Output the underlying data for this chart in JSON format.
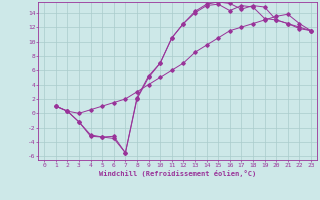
{
  "xlabel": "Windchill (Refroidissement éolien,°C)",
  "bg_color": "#cde8e8",
  "grid_color": "#aacccc",
  "line_color": "#993399",
  "xlim": [
    -0.5,
    23.5
  ],
  "ylim": [
    -6.5,
    15.5
  ],
  "xticks": [
    0,
    1,
    2,
    3,
    4,
    5,
    6,
    7,
    8,
    9,
    10,
    11,
    12,
    13,
    14,
    15,
    16,
    17,
    18,
    19,
    20,
    21,
    22,
    23
  ],
  "yticks": [
    -6,
    -4,
    -2,
    0,
    2,
    4,
    6,
    8,
    10,
    12,
    14
  ],
  "curve1_x": [
    1,
    2,
    3,
    4,
    5,
    6,
    7,
    8,
    9,
    10,
    11,
    12,
    13,
    14,
    15,
    16,
    17,
    18,
    19,
    20,
    21,
    22,
    23
  ],
  "curve1_y": [
    1,
    0.3,
    -1.2,
    -3.2,
    -3.3,
    -3.5,
    -5.5,
    2.0,
    5.0,
    7.0,
    10.5,
    12.5,
    14.2,
    15.2,
    15.5,
    15.3,
    14.5,
    15.0,
    14.8,
    13.0,
    12.5,
    11.8,
    11.5
  ],
  "curve2_x": [
    1,
    2,
    3,
    4,
    5,
    6,
    7,
    8,
    9,
    10,
    11,
    12,
    13,
    14,
    15,
    16,
    17,
    18,
    19,
    20,
    21,
    22,
    23
  ],
  "curve2_y": [
    1,
    0.3,
    -1.2,
    -3.0,
    -3.3,
    -3.2,
    -5.5,
    2.2,
    5.2,
    7.0,
    10.5,
    12.5,
    14.0,
    15.0,
    15.2,
    14.3,
    15.0,
    14.8,
    13.2,
    13.0,
    12.5,
    12.0,
    11.5
  ],
  "curve3_x": [
    1,
    2,
    3,
    4,
    5,
    6,
    7,
    8,
    9,
    10,
    11,
    12,
    13,
    14,
    15,
    16,
    17,
    18,
    19,
    20,
    21,
    22,
    23
  ],
  "curve3_y": [
    1,
    0.3,
    0.0,
    0.5,
    1.0,
    1.5,
    2.0,
    3.0,
    4.0,
    5.0,
    6.0,
    7.0,
    8.5,
    9.5,
    10.5,
    11.5,
    12.0,
    12.5,
    13.0,
    13.5,
    13.8,
    12.5,
    11.5
  ]
}
